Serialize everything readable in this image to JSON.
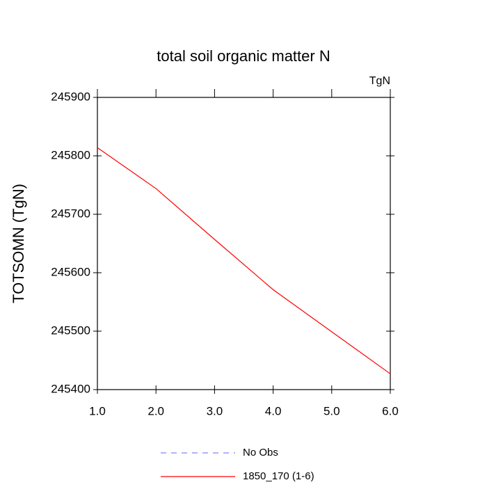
{
  "chart_data": {
    "type": "line",
    "title": "total soil organic matter N",
    "units": "TgN",
    "y_label": "TOTSOMN  (TgN)",
    "x": [
      1,
      2,
      3,
      4,
      5,
      6
    ],
    "series": [
      {
        "name": "No Obs",
        "color": "#8080ff",
        "dashed": true,
        "values": [
          null,
          null,
          null,
          null,
          null,
          null
        ]
      },
      {
        "name": "1850_170 (1-6)",
        "color": "#ff0000",
        "dashed": false,
        "values": [
          245814,
          245744,
          245657,
          245571,
          245499,
          245427
        ]
      }
    ],
    "xlim": [
      1,
      6
    ],
    "xticks": [
      {
        "value": 1,
        "label": "1.0"
      },
      {
        "value": 2,
        "label": "2.0"
      },
      {
        "value": 3,
        "label": "3.0"
      },
      {
        "value": 4,
        "label": "4.0"
      },
      {
        "value": 5,
        "label": "5.0"
      },
      {
        "value": 6,
        "label": "6.0"
      }
    ],
    "ylim": [
      245400,
      245900
    ],
    "yticks": [
      245400,
      245500,
      245600,
      245700,
      245800,
      245900
    ],
    "grid": false,
    "legend": "bottom"
  }
}
